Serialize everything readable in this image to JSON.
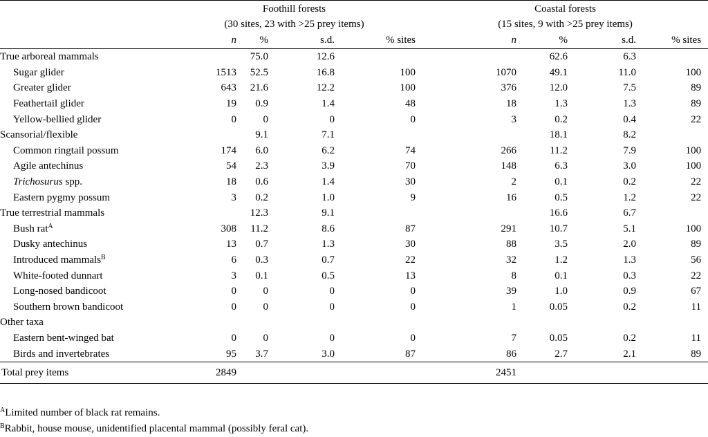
{
  "headers": {
    "group1": {
      "title": "Foothill forests",
      "subtitle": "(30 sites, 23 with >25 prey items)"
    },
    "group2": {
      "title": "Coastal forests",
      "subtitle": "(15 sites, 9 with >25 prey items)"
    },
    "cols": {
      "n": "n",
      "pct": "%",
      "sd": "s.d.",
      "pct_sites": "% sites"
    }
  },
  "rows": [
    {
      "label": "True arboreal mammals",
      "kind": "group",
      "f": [
        "",
        "75.0",
        "12.6",
        ""
      ],
      "c": [
        "",
        "62.6",
        "6.3",
        ""
      ]
    },
    {
      "label": "Sugar glider",
      "kind": "item",
      "f": [
        "1513",
        "52.5",
        "16.8",
        "100"
      ],
      "c": [
        "1070",
        "49.1",
        "11.0",
        "100"
      ]
    },
    {
      "label": "Greater glider",
      "kind": "item",
      "f": [
        "643",
        "21.6",
        "12.2",
        "100"
      ],
      "c": [
        "376",
        "12.0",
        "7.5",
        "89"
      ]
    },
    {
      "label": "Feathertail glider",
      "kind": "item",
      "f": [
        "19",
        "0.9",
        "1.4",
        "48"
      ],
      "c": [
        "18",
        "1.3",
        "1.3",
        "89"
      ]
    },
    {
      "label": "Yellow-bellied glider",
      "kind": "item",
      "f": [
        "0",
        "0",
        "0",
        "0"
      ],
      "c": [
        "3",
        "0.2",
        "0.4",
        "22"
      ]
    },
    {
      "label": "Scansorial/flexible",
      "kind": "group",
      "f": [
        "",
        "9.1",
        "7.1",
        ""
      ],
      "c": [
        "",
        "18.1",
        "8.2",
        ""
      ]
    },
    {
      "label": "Common ringtail possum",
      "kind": "item",
      "f": [
        "174",
        "6.0",
        "6.2",
        "74"
      ],
      "c": [
        "266",
        "11.2",
        "7.9",
        "100"
      ]
    },
    {
      "label": "Agile antechinus",
      "kind": "item",
      "f": [
        "54",
        "2.3",
        "3.9",
        "70"
      ],
      "c": [
        "148",
        "6.3",
        "3.0",
        "100"
      ]
    },
    {
      "label": "Trichosurus",
      "label_suffix": " spp.",
      "italic": true,
      "kind": "item",
      "f": [
        "18",
        "0.6",
        "1.4",
        "30"
      ],
      "c": [
        "2",
        "0.1",
        "0.2",
        "22"
      ]
    },
    {
      "label": "Eastern pygmy possum",
      "kind": "item",
      "f": [
        "3",
        "0.2",
        "1.0",
        "9"
      ],
      "c": [
        "16",
        "0.5",
        "1.2",
        "22"
      ]
    },
    {
      "label": "True terrestrial mammals",
      "kind": "group",
      "f": [
        "",
        "12.3",
        "9.1",
        ""
      ],
      "c": [
        "",
        "16.6",
        "6.7",
        ""
      ]
    },
    {
      "label": "Bush rat",
      "sup": "A",
      "kind": "item",
      "f": [
        "308",
        "11.2",
        "8.6",
        "87"
      ],
      "c": [
        "291",
        "10.7",
        "5.1",
        "100"
      ]
    },
    {
      "label": "Dusky antechinus",
      "kind": "item",
      "f": [
        "13",
        "0.7",
        "1.3",
        "30"
      ],
      "c": [
        "88",
        "3.5",
        "2.0",
        "89"
      ]
    },
    {
      "label": "Introduced mammals",
      "sup": "B",
      "kind": "item",
      "f": [
        "6",
        "0.3",
        "0.7",
        "22"
      ],
      "c": [
        "32",
        "1.2",
        "1.3",
        "56"
      ]
    },
    {
      "label": "White-footed dunnart",
      "kind": "item",
      "f": [
        "3",
        "0.1",
        "0.5",
        "13"
      ],
      "c": [
        "8",
        "0.1",
        "0.3",
        "22"
      ]
    },
    {
      "label": "Long-nosed bandicoot",
      "kind": "item",
      "f": [
        "0",
        "0",
        "0",
        "0"
      ],
      "c": [
        "39",
        "1.0",
        "0.9",
        "67"
      ]
    },
    {
      "label": "Southern brown bandicoot",
      "kind": "item",
      "f": [
        "0",
        "0",
        "0",
        "0"
      ],
      "c": [
        "1",
        "0.05",
        "0.2",
        "11"
      ]
    },
    {
      "label": "Other taxa",
      "kind": "group",
      "f": [
        "",
        "",
        "",
        ""
      ],
      "c": [
        "",
        "",
        "",
        ""
      ]
    },
    {
      "label": "Eastern bent-winged bat",
      "kind": "item",
      "f": [
        "0",
        "0",
        "0",
        "0"
      ],
      "c": [
        "7",
        "0.05",
        "0.2",
        "11"
      ]
    },
    {
      "label": "Birds and invertebrates",
      "kind": "item",
      "f": [
        "95",
        "3.7",
        "3.0",
        "87"
      ],
      "c": [
        "86",
        "2.7",
        "2.1",
        "89"
      ]
    }
  ],
  "total": {
    "label": "Total prey items",
    "f_n": "2849",
    "c_n": "2451"
  },
  "footnotes": [
    {
      "mark": "A",
      "text": "Limited number of black rat remains."
    },
    {
      "mark": "B",
      "text": "Rabbit, house mouse, unidentified placental mammal (possibly feral cat)."
    }
  ]
}
